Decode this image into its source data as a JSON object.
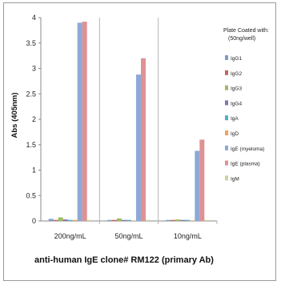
{
  "chart_data": {
    "type": "bar",
    "title": "",
    "xlabel": "anti-human IgE clone# RM122 (primary Ab)",
    "ylabel": "Abs (405nm)",
    "ylim": [
      0,
      4
    ],
    "yticks": [
      "0",
      "0.5",
      "1",
      "1.5",
      "2",
      "2.5",
      "3",
      "3.5",
      "4"
    ],
    "categories": [
      "200ng/mL",
      "50ng/mL",
      "10ng/mL"
    ],
    "grid": "vertical separators between categories",
    "legend_position": "right",
    "legend_title": [
      "Plate Coated with:",
      "(50ng/well)"
    ],
    "series": [
      {
        "name": "IgG1",
        "color": "#7f9cc9",
        "values": [
          0.04,
          0.02,
          0.02
        ]
      },
      {
        "name": "IgG2",
        "color": "#c8645a",
        "values": [
          0.02,
          0.02,
          0.02
        ]
      },
      {
        "name": "IgG3",
        "color": "#9dbb61",
        "values": [
          0.07,
          0.05,
          0.03
        ]
      },
      {
        "name": "IgG4",
        "color": "#8874aa",
        "values": [
          0.03,
          0.02,
          0.02
        ]
      },
      {
        "name": "IgA",
        "color": "#4fadc6",
        "values": [
          0.02,
          0.02,
          0.02
        ]
      },
      {
        "name": "IgD",
        "color": "#f0a258",
        "values": [
          0.02,
          0.01,
          0.01
        ]
      },
      {
        "name": "IgE (myeloma)",
        "color": "#8da9d6",
        "values": [
          3.9,
          2.88,
          1.38
        ]
      },
      {
        "name": "IgE (plasma)",
        "color": "#df9194",
        "values": [
          3.92,
          3.2,
          1.6
        ]
      },
      {
        "name": "IgM",
        "color": "#c3d69b",
        "values": [
          0.02,
          0.02,
          0.02
        ]
      }
    ]
  }
}
